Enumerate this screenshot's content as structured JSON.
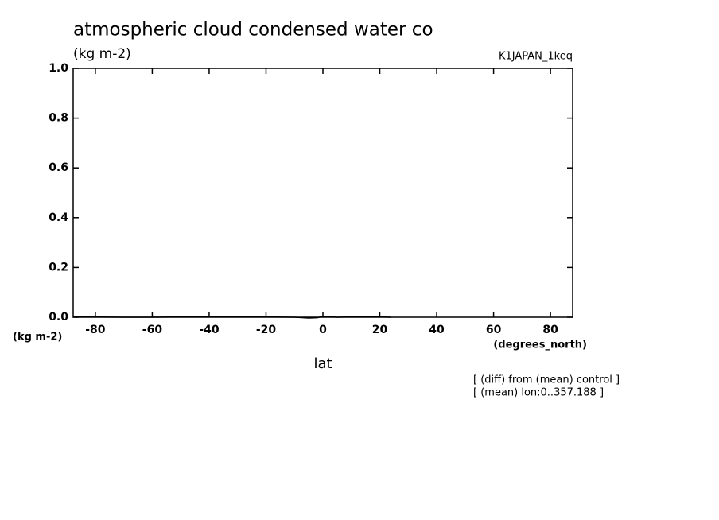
{
  "chart_data": {
    "type": "line",
    "title": "atmospheric cloud condensed water co",
    "subtitle": "(kg m-2)",
    "experiment": "K1JAPAN_1keq",
    "y_units": "(kg m-2)",
    "x_units": "(degrees_north)",
    "xlabel": "lat",
    "notes": [
      "[ (diff) from (mean) control ]",
      "[ (mean) lon:0..357.188 ]"
    ],
    "xlim": [
      -87.8,
      87.8
    ],
    "xticks": [
      -80,
      -60,
      -40,
      -20,
      0,
      20,
      40,
      60,
      80
    ],
    "ylim": [
      0,
      1
    ],
    "yticks": [
      {
        "value": 0,
        "label": "0.0"
      },
      0.2,
      0.4,
      0.6,
      0.8,
      {
        "value": 1,
        "label": "1.0"
      }
    ],
    "series": [
      {
        "name": "diff",
        "color": "#000000",
        "x": [
          -87.8,
          -80,
          -70,
          -60,
          -50,
          -40,
          -30,
          -20,
          -10,
          -5,
          -2,
          0,
          2,
          5,
          10,
          20,
          24
        ],
        "values": [
          0.002,
          0.001,
          0.0,
          0.0,
          0.001,
          0.002,
          0.003,
          0.001,
          0.0,
          -0.003,
          -0.002,
          0.003,
          0.002,
          0.0,
          0.001,
          0.001,
          0.0
        ]
      }
    ]
  }
}
